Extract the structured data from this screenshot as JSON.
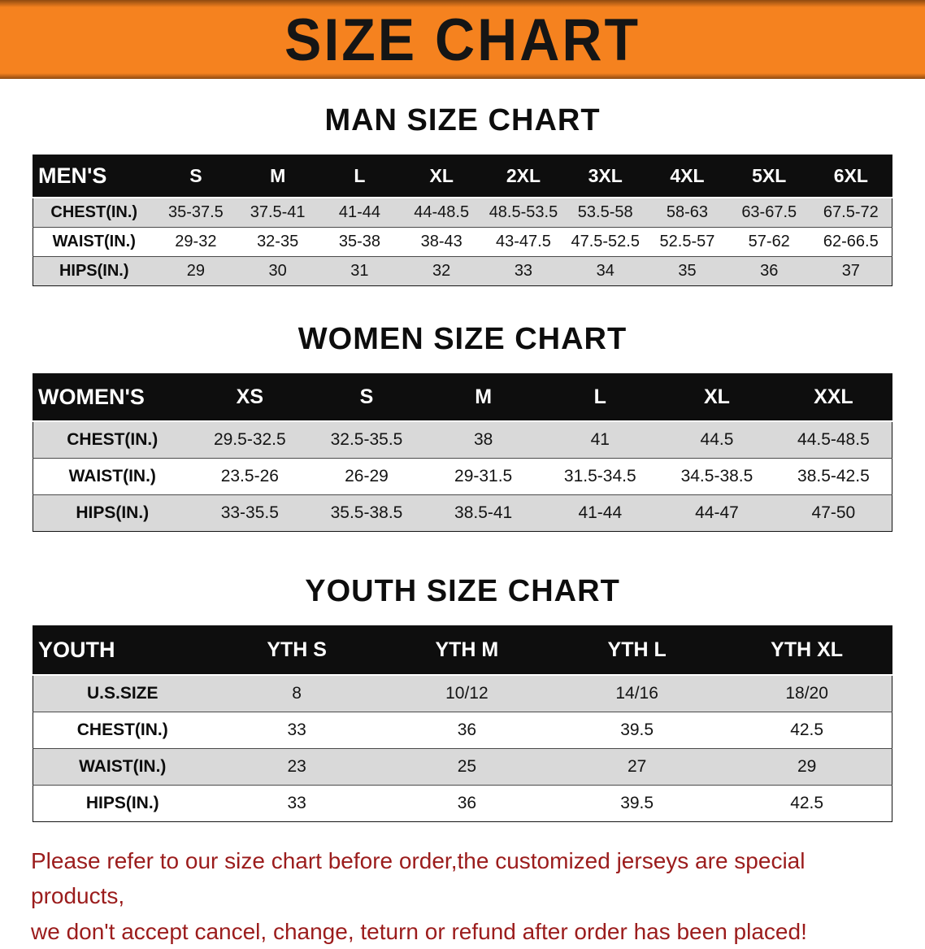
{
  "banner": {
    "title": "SIZE CHART",
    "bg_color": "#F5821F",
    "text_color": "#151515"
  },
  "sections": [
    {
      "heading": "MAN SIZE CHART",
      "table": {
        "header": [
          "MEN'S",
          "S",
          "M",
          "L",
          "XL",
          "2XL",
          "3XL",
          "4XL",
          "5XL",
          "6XL"
        ],
        "rows": [
          [
            "CHEST(IN.)",
            "35-37.5",
            "37.5-41",
            "41-44",
            "44-48.5",
            "48.5-53.5",
            "53.5-58",
            "58-63",
            "63-67.5",
            "67.5-72"
          ],
          [
            "WAIST(IN.)",
            "29-32",
            "32-35",
            "35-38",
            "38-43",
            "43-47.5",
            "47.5-52.5",
            "52.5-57",
            "57-62",
            "62-66.5"
          ],
          [
            "HIPS(IN.)",
            "29",
            "30",
            "31",
            "32",
            "33",
            "34",
            "35",
            "36",
            "37"
          ]
        ]
      }
    },
    {
      "heading": "WOMEN SIZE CHART",
      "table": {
        "header": [
          "WOMEN'S",
          "XS",
          "S",
          "M",
          "L",
          "XL",
          "XXL"
        ],
        "rows": [
          [
            "CHEST(IN.)",
            "29.5-32.5",
            "32.5-35.5",
            "38",
            "41",
            "44.5",
            "44.5-48.5"
          ],
          [
            "WAIST(IN.)",
            "23.5-26",
            "26-29",
            "29-31.5",
            "31.5-34.5",
            "34.5-38.5",
            "38.5-42.5"
          ],
          [
            "HIPS(IN.)",
            "33-35.5",
            "35.5-38.5",
            "38.5-41",
            "41-44",
            "44-47",
            "47-50"
          ]
        ]
      }
    },
    {
      "heading": "YOUTH SIZE CHART",
      "table": {
        "header": [
          "YOUTH",
          "YTH S",
          "YTH M",
          "YTH L",
          "YTH XL"
        ],
        "rows": [
          [
            "U.S.SIZE",
            "8",
            "10/12",
            "14/16",
            "18/20"
          ],
          [
            "CHEST(IN.)",
            "33",
            "36",
            "39.5",
            "42.5"
          ],
          [
            "WAIST(IN.)",
            "23",
            "25",
            "27",
            "29"
          ],
          [
            "HIPS(IN.)",
            "33",
            "36",
            "39.5",
            "42.5"
          ]
        ]
      }
    }
  ],
  "disclaimer": {
    "color": "#9B1C1C",
    "lines": [
      "Please refer to our size chart before order,the customized jerseys are special products,",
      "we don't accept cancel, change, teturn or refund after order has been placed!"
    ]
  }
}
